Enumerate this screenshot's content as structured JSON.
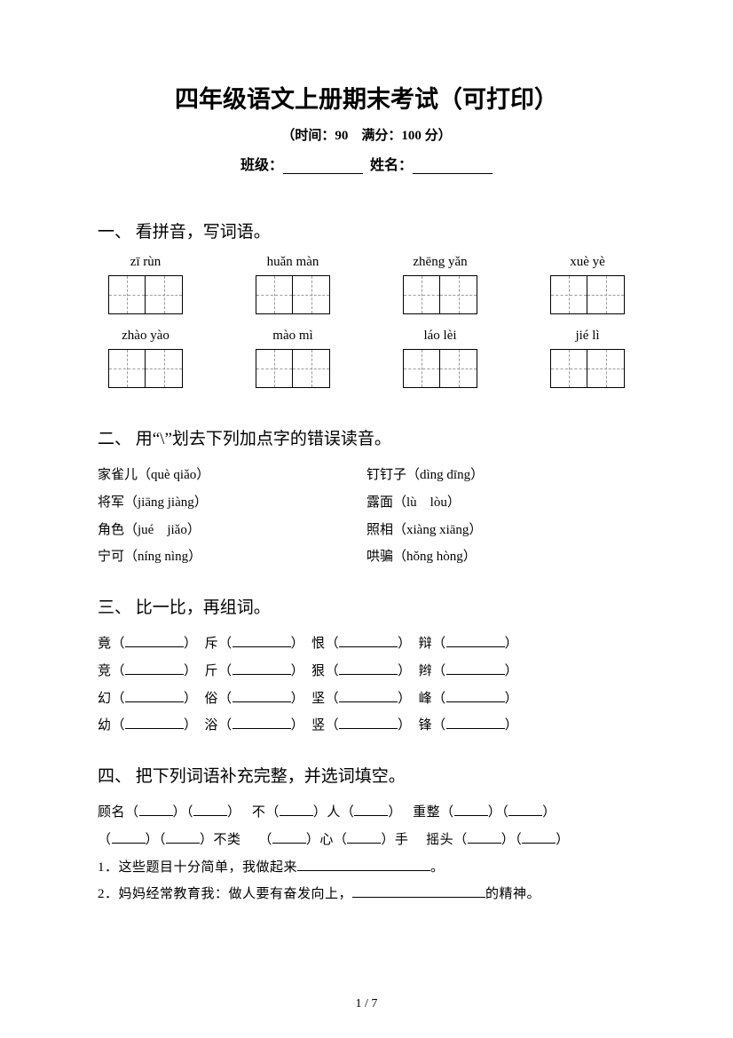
{
  "title": "四年级语文上册期末考试（可打印）",
  "subtitle": "（时间：90　满分：100 分）",
  "meta": {
    "class_label": "班级：",
    "name_label": "姓名："
  },
  "s1": {
    "title": "一、 看拼音，写词语。",
    "row1": [
      "zī rùn",
      "huǎn màn",
      "zhēng yǎn",
      "xuè yè"
    ],
    "row2": [
      "zhào yào",
      "mào mì",
      "láo lèi",
      "jié lì"
    ]
  },
  "s2": {
    "title": "二、 用“\\”划去下列加点字的错误读音。",
    "left": [
      {
        "zh": "家雀儿",
        "py": "（què qiǎo）"
      },
      {
        "zh": "将军",
        "py": "（jiāng jiàng）"
      },
      {
        "zh": "角色",
        "py": "（jué　jiǎo）"
      },
      {
        "zh": "宁可",
        "py": "（níng nìng）"
      }
    ],
    "right": [
      {
        "zh": "钉钉子",
        "py": "（dìng dīng）"
      },
      {
        "zh": "露面",
        "py": "（lù　lòu）"
      },
      {
        "zh": "照相",
        "py": "（xiàng xiāng）"
      },
      {
        "zh": "哄骗",
        "py": "（hǒng hòng）"
      }
    ]
  },
  "s3": {
    "title": "三、 比一比，再组词。",
    "rows": [
      [
        "竟",
        "斥",
        "恨",
        "辩"
      ],
      [
        "竞",
        "斤",
        "狠",
        "辫"
      ],
      [
        "幻",
        "俗",
        "坚",
        "峰"
      ],
      [
        "幼",
        "浴",
        "竖",
        "锋"
      ]
    ]
  },
  "s4": {
    "title": "四、 把下列词语补充完整，并选词填空。",
    "line1a": "顾名",
    "line1b": "不",
    "line1c": "人",
    "line1d": "重整",
    "line2a": "不类",
    "line2b": "心",
    "line2c": "手",
    "line2d": "摇头",
    "q1_pre": "1．这些题目十分简单，我做起来",
    "q1_post": "。",
    "q2_pre": "2．妈妈经常教育我：做人要有奋发向上，",
    "q2_post": "的精神。"
  },
  "page": "1 / 7"
}
